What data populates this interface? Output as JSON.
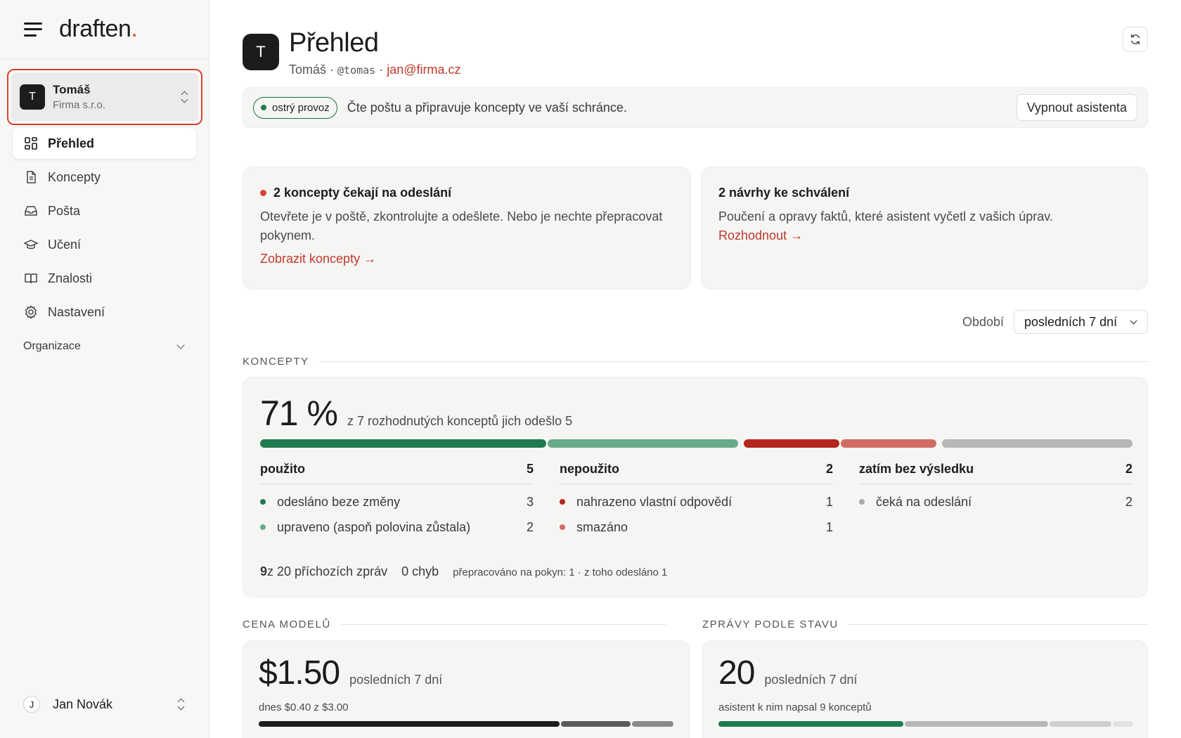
{
  "brand": {
    "name": "draften",
    "dot": "."
  },
  "account": {
    "initial": "T",
    "name": "Tomáš",
    "company": "Firma s.r.o."
  },
  "nav": {
    "items": [
      {
        "label": "Přehled",
        "icon": "grid-icon",
        "active": true
      },
      {
        "label": "Koncepty",
        "icon": "document-icon"
      },
      {
        "label": "Pošta",
        "icon": "inbox-icon"
      },
      {
        "label": "Učení",
        "icon": "graduation-cap-icon"
      },
      {
        "label": "Znalosti",
        "icon": "book-icon"
      },
      {
        "label": "Nastavení",
        "icon": "gear-icon"
      }
    ],
    "section": "Organizace"
  },
  "user": {
    "initial": "J",
    "name": "Jan Novák"
  },
  "header": {
    "initial": "T",
    "title": "Přehled",
    "name": "Tomáš",
    "sep1": " · ",
    "handle": "@tomas",
    "sep2": " · ",
    "email": "jan@firma.cz"
  },
  "banner": {
    "pill": "ostrý provoz",
    "text": "Čte poštu a připravuje koncepty ve vaší schránce.",
    "button": "Vypnout asistenta"
  },
  "cards": {
    "drafts": {
      "title": "2 koncepty čekají na odeslání",
      "body": "Otevřete je v poště, zkontrolujte a odešlete. Nebo je nechte přepracovat pokynem.",
      "link": "Zobrazit koncepty →"
    },
    "proposals": {
      "title": "2 návrhy ke schválení",
      "body": "Poučení a opravy faktů, které asistent vyčetl z vašich úprav.",
      "link": "Rozhodnout →"
    }
  },
  "period": {
    "label": "Období",
    "value": "posledních 7 dní"
  },
  "koncepty": {
    "section": "KONCEPTY",
    "percent": "71 %",
    "desc": "z 7 rozhodnutých konceptů jich odešlo 5",
    "segments": [
      {
        "value": 3,
        "color": "#1f7a4d"
      },
      {
        "value": 2,
        "color": "#6aab8a"
      },
      {
        "value": 1,
        "color": "#b3261e"
      },
      {
        "value": 1,
        "color": "#d26a64"
      },
      {
        "value": 2,
        "color": "#b7b7b5"
      }
    ],
    "columns": [
      {
        "title": "použito",
        "total": "5",
        "rows": [
          {
            "label": "odesláno beze změny",
            "value": "3",
            "color": "#1f7a4d"
          },
          {
            "label": "upraveno (aspoň polovina zůstala)",
            "value": "2",
            "color": "#6aab8a"
          }
        ]
      },
      {
        "title": "nepoužito",
        "total": "2",
        "rows": [
          {
            "label": "nahrazeno vlastní odpovědí",
            "value": "1",
            "color": "#b3261e"
          },
          {
            "label": "smazáno",
            "value": "1",
            "color": "#d26a64"
          }
        ]
      },
      {
        "title": "zatím bez výsledku",
        "total": "2",
        "rows": [
          {
            "label": "čeká na odeslání",
            "value": "2",
            "color": "#a9a9a7"
          }
        ]
      }
    ],
    "footer": {
      "count": "9",
      "count_rest": " z 20 příchozích zpráv",
      "errors": "0 chyb",
      "rework": "přepracováno na pokyn: 1 · z toho odesláno 1"
    }
  },
  "cost": {
    "section": "CENA MODELŮ",
    "amount": "$1.50",
    "period": "posledních 7 dní",
    "sub": "dnes $0.40 z $3.00",
    "segments": [
      {
        "value": 0.73,
        "color": "#1c1c1c"
      },
      {
        "value": 0.17,
        "color": "#5a5a5a"
      },
      {
        "value": 0.1,
        "color": "#8a8a8a"
      }
    ]
  },
  "messages": {
    "section": "ZPRÁVY PODLE STAVU",
    "count": "20",
    "period": "posledních 7 dní",
    "sub": "asistent k nim napsal 9 konceptů",
    "segments": [
      {
        "value": 9,
        "color": "#1f7a4d"
      },
      {
        "value": 7,
        "color": "#b7b7b5"
      },
      {
        "value": 3,
        "color": "#cfcfcd"
      },
      {
        "value": 1,
        "color": "#e2e2e0"
      }
    ]
  }
}
